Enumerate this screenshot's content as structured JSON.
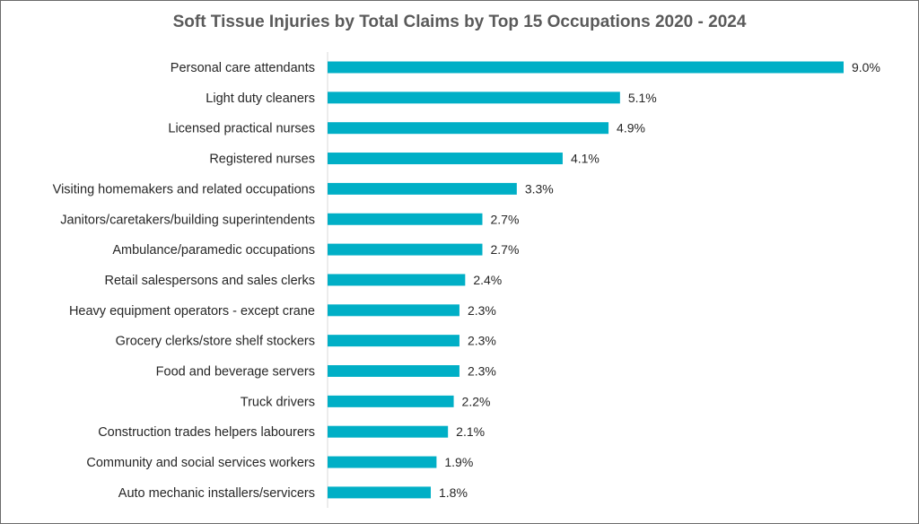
{
  "chart_data": {
    "type": "bar",
    "orientation": "horizontal",
    "title": "Soft Tissue Injuries by Total Claims by Top 15 Occupations 2020 - 2024",
    "categories": [
      "Personal care attendants",
      "Light duty cleaners",
      "Licensed practical nurses",
      "Registered nurses",
      "Visiting homemakers and related occupations",
      "Janitors/caretakers/building superintendents",
      "Ambulance/paramedic occupations",
      "Retail salespersons and sales clerks",
      "Heavy equipment operators - except crane",
      "Grocery clerks/store shelf stockers",
      "Food and beverage servers",
      "Truck drivers",
      "Construction trades helpers labourers",
      "Community and social services workers",
      "Auto mechanic installers/servicers"
    ],
    "values": [
      9.0,
      5.1,
      4.9,
      4.1,
      3.3,
      2.7,
      2.7,
      2.4,
      2.3,
      2.3,
      2.3,
      2.2,
      2.1,
      1.9,
      1.8
    ],
    "value_labels": [
      "9.0%",
      "5.1%",
      "4.9%",
      "4.1%",
      "3.3%",
      "2.7%",
      "2.7%",
      "2.4%",
      "2.3%",
      "2.3%",
      "2.3%",
      "2.2%",
      "2.1%",
      "1.9%",
      "1.8%"
    ],
    "xlim": [
      0,
      9.0
    ],
    "bar_color": "#00afc6",
    "grid": false,
    "legend": "none"
  }
}
